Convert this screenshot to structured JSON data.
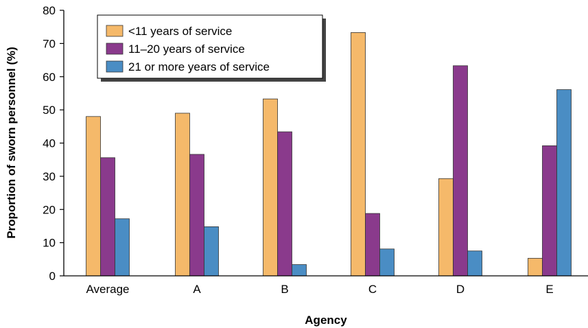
{
  "chart_data": {
    "type": "bar",
    "title": "",
    "xlabel": "Agency",
    "ylabel": "Proportion of sworn personnel (%)",
    "categories": [
      "Average",
      "A",
      "B",
      "C",
      "D",
      "E"
    ],
    "ylim": [
      0,
      80
    ],
    "yticks": [
      0,
      10,
      20,
      30,
      40,
      50,
      60,
      70,
      80
    ],
    "grid": false,
    "legend_position": "top-left",
    "series": [
      {
        "name": "<11 years of service",
        "color": "#F5B96A",
        "values": [
          48,
          49,
          53.3,
          73.3,
          29.3,
          5.3
        ]
      },
      {
        "name": "11–20 years of service",
        "color": "#8A3A8C",
        "values": [
          35.6,
          36.6,
          43.4,
          18.8,
          63.3,
          39.2
        ]
      },
      {
        "name": "21 or more years of service",
        "color": "#4A8DC4",
        "values": [
          17.2,
          14.8,
          3.4,
          8.1,
          7.5,
          56.1
        ]
      }
    ]
  }
}
